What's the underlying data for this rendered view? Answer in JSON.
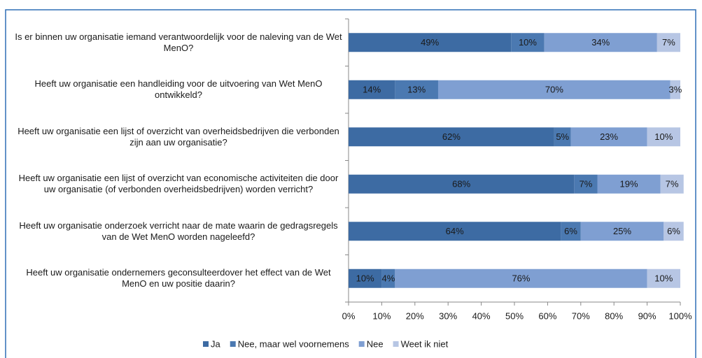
{
  "chart_data": {
    "type": "stacked-barh",
    "categories": [
      "Is er binnen uw organisatie iemand verantwoordelijk voor de naleving van de Wet MenO?",
      "Heeft uw organisatie een handleiding voor de uitvoering van Wet MenO ontwikkeld?",
      "Heeft uw organisatie een lijst of overzicht van overheidsbedrijven die verbonden zijn aan uw organisatie?",
      "Heeft uw organisatie een lijst of overzicht van economische activiteiten die door uw organisatie (of verbonden overheidsbedrijven) worden verricht?",
      "Heeft uw organisatie onderzoek verricht naar de mate waarin de gedragsregels van de Wet MenO worden nageleefd?",
      "Heeft uw organisatie ondernemers geconsulteerdover het effect van de Wet MenO en uw positie daarin?"
    ],
    "series": [
      {
        "name": "Ja",
        "color": "#3d6ba3",
        "values": [
          49,
          14,
          62,
          68,
          64,
          10
        ],
        "value_labels": [
          "49%",
          "14%",
          "62%",
          "68%",
          "64%",
          "10%"
        ]
      },
      {
        "name": "Nee, maar wel voornemens",
        "color": "#4b79b1",
        "values": [
          10,
          13,
          5,
          7,
          6,
          4
        ],
        "value_labels": [
          "10%",
          "13%",
          "5%",
          "7%",
          "6%",
          "4%"
        ]
      },
      {
        "name": "Nee",
        "color": "#7f9fd2",
        "values": [
          34,
          70,
          23,
          19,
          25,
          76
        ],
        "value_labels": [
          "34%",
          "70%",
          "23%",
          "19%",
          "25%",
          "76%"
        ]
      },
      {
        "name": "Weet ik niet",
        "color": "#b7c6e4",
        "values": [
          7,
          3,
          10,
          7,
          6,
          10
        ],
        "value_labels": [
          "7%",
          "3%",
          "10%",
          "7%",
          "6%",
          "10%"
        ]
      }
    ],
    "xlim": [
      0,
      100
    ],
    "xticks": [
      {
        "value": 0,
        "label": "0%"
      },
      {
        "value": 10,
        "label": "10%"
      },
      {
        "value": 20,
        "label": "20%"
      },
      {
        "value": 30,
        "label": "30%"
      },
      {
        "value": 40,
        "label": "40%"
      },
      {
        "value": 50,
        "label": "50%"
      },
      {
        "value": 60,
        "label": "60%"
      },
      {
        "value": 70,
        "label": "70%"
      },
      {
        "value": 80,
        "label": "80%"
      },
      {
        "value": 90,
        "label": "90%"
      },
      {
        "value": 100,
        "label": "100%"
      }
    ],
    "legend": "bottom"
  }
}
